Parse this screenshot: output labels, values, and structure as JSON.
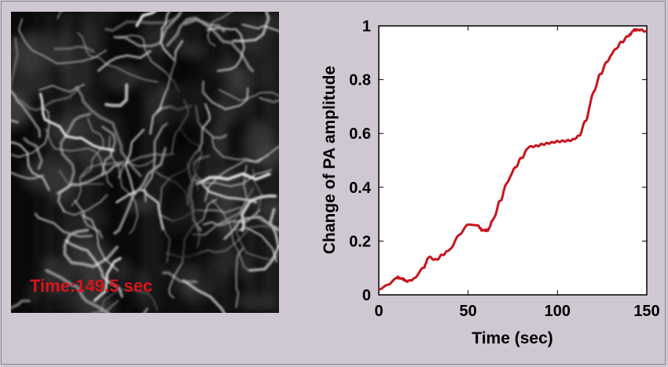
{
  "micrograph": {
    "time_label": "Time:149.5 sec",
    "label_color": "#d8141c"
  },
  "chart_data": {
    "type": "line",
    "xlabel": "Time (sec)",
    "ylabel": "Change of PA amplitude",
    "xlim": [
      0,
      150
    ],
    "ylim": [
      0,
      1
    ],
    "x_ticks": [
      "0",
      "50",
      "100",
      "150"
    ],
    "y_ticks": [
      "0",
      "0.2",
      "0.4",
      "0.6",
      "0.8",
      "1"
    ],
    "grid": false,
    "series": [
      {
        "color": "#c8141c",
        "x": [
          0,
          5,
          10,
          13,
          16,
          20,
          25,
          28,
          32,
          36,
          40,
          45,
          50,
          55,
          58,
          61,
          64,
          68,
          72,
          76,
          80,
          84,
          88,
          92,
          96,
          100,
          104,
          108,
          112,
          116,
          120,
          124,
          128,
          132,
          136,
          140,
          143,
          146,
          150
        ],
        "y": [
          0.02,
          0.04,
          0.065,
          0.06,
          0.05,
          0.06,
          0.1,
          0.14,
          0.13,
          0.15,
          0.17,
          0.22,
          0.26,
          0.26,
          0.24,
          0.24,
          0.28,
          0.35,
          0.42,
          0.47,
          0.51,
          0.55,
          0.553,
          0.56,
          0.565,
          0.57,
          0.572,
          0.575,
          0.59,
          0.65,
          0.75,
          0.82,
          0.87,
          0.91,
          0.94,
          0.965,
          0.985,
          0.985,
          0.98
        ]
      }
    ]
  }
}
